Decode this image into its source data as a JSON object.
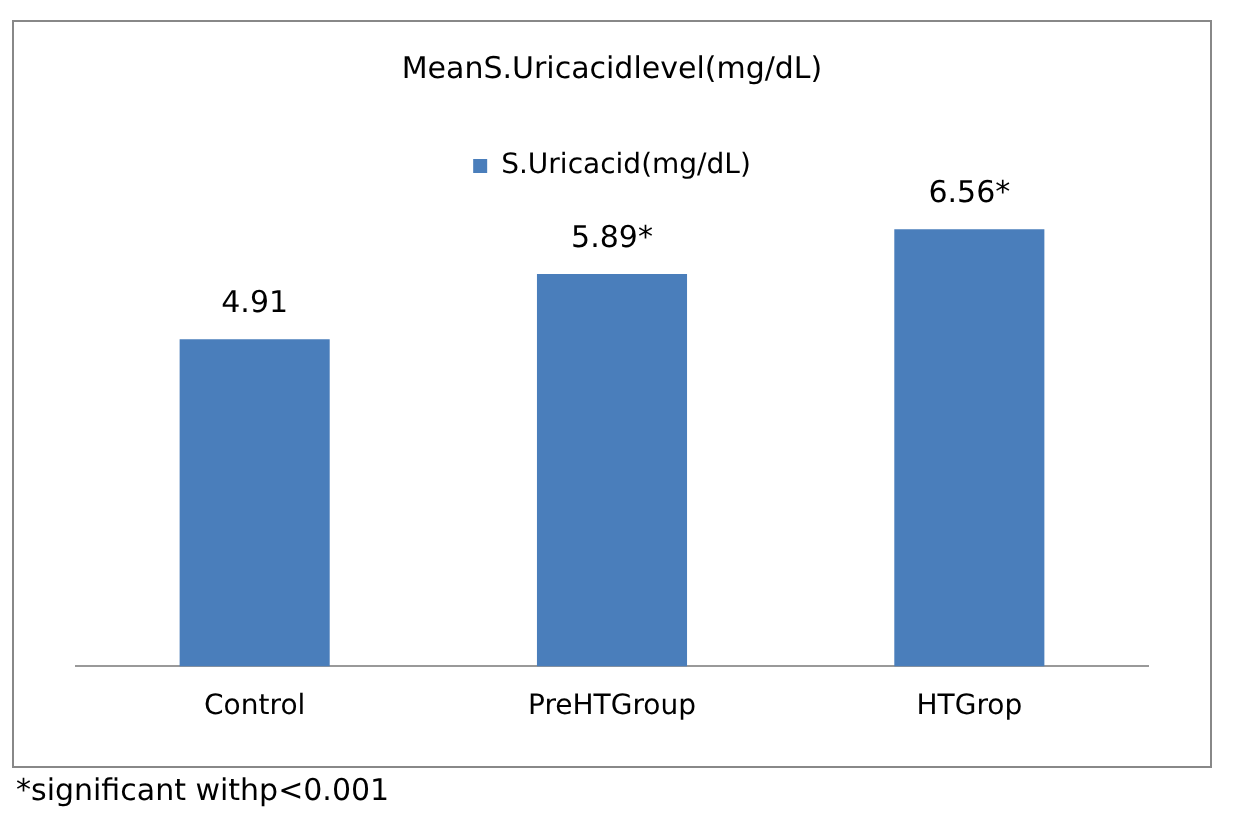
{
  "chart_data": {
    "type": "bar",
    "title": "MeanS.Uricacidlevel(mg/dL)",
    "categories": [
      "Control",
      "PreHTGroup",
      "HTGrop"
    ],
    "series": [
      {
        "name": "S.Uricacid(mg/dL)",
        "color": "#4a7ebb",
        "values": [
          4.91,
          5.89,
          6.56
        ],
        "value_labels": [
          "4.91",
          "5.89*",
          "6.56*"
        ]
      }
    ],
    "grid": false,
    "legend": "top",
    "tick_labels": "x",
    "annotations": [
      "*significant withp<0.001"
    ]
  }
}
